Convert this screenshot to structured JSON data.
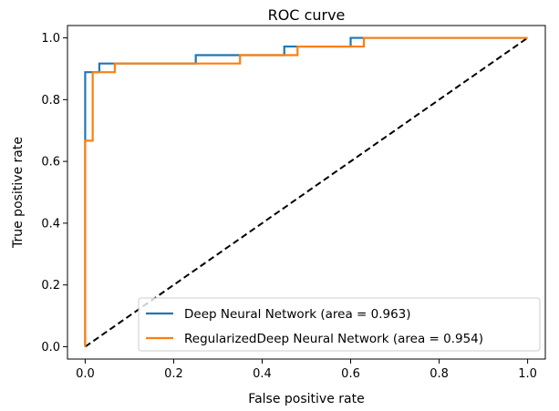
{
  "chart_data": {
    "type": "line",
    "title": "ROC curve",
    "xlabel": "False positive rate",
    "ylabel": "True positive rate",
    "xlim": [
      -0.04,
      1.04
    ],
    "ylim": [
      -0.04,
      1.04
    ],
    "xticks": [
      0.0,
      0.2,
      0.4,
      0.6,
      0.8,
      1.0
    ],
    "yticks": [
      0.0,
      0.2,
      0.4,
      0.6,
      0.8,
      1.0
    ],
    "xtick_labels": [
      "0.0",
      "0.2",
      "0.4",
      "0.6",
      "0.8",
      "1.0"
    ],
    "ytick_labels": [
      "0.0",
      "0.2",
      "0.4",
      "0.6",
      "0.8",
      "1.0"
    ],
    "grid": false,
    "legend_position": "lower-right",
    "series": [
      {
        "name": "Deep Neural Network (area = 0.963)",
        "color": "#1f77b4",
        "x": [
          0.0,
          0.0,
          0.0,
          0.0,
          0.032,
          0.032,
          0.25,
          0.25,
          0.45,
          0.45,
          0.6,
          0.6,
          1.0
        ],
        "y": [
          0.0,
          0.667,
          0.667,
          0.889,
          0.889,
          0.917,
          0.917,
          0.944,
          0.944,
          0.972,
          0.972,
          1.0,
          1.0
        ]
      },
      {
        "name": "RegularizedDeep Neural Network (area = 0.954)",
        "color": "#ff7f0e",
        "x": [
          0.0,
          0.0,
          0.017,
          0.017,
          0.067,
          0.067,
          0.35,
          0.35,
          0.48,
          0.48,
          0.63,
          0.63,
          1.0
        ],
        "y": [
          0.0,
          0.667,
          0.667,
          0.889,
          0.889,
          0.917,
          0.917,
          0.944,
          0.944,
          0.972,
          0.972,
          1.0,
          1.0
        ]
      },
      {
        "name": "chance",
        "color": "#000000",
        "dashed": true,
        "in_legend": false,
        "x": [
          0.0,
          1.0
        ],
        "y": [
          0.0,
          1.0
        ]
      }
    ]
  }
}
